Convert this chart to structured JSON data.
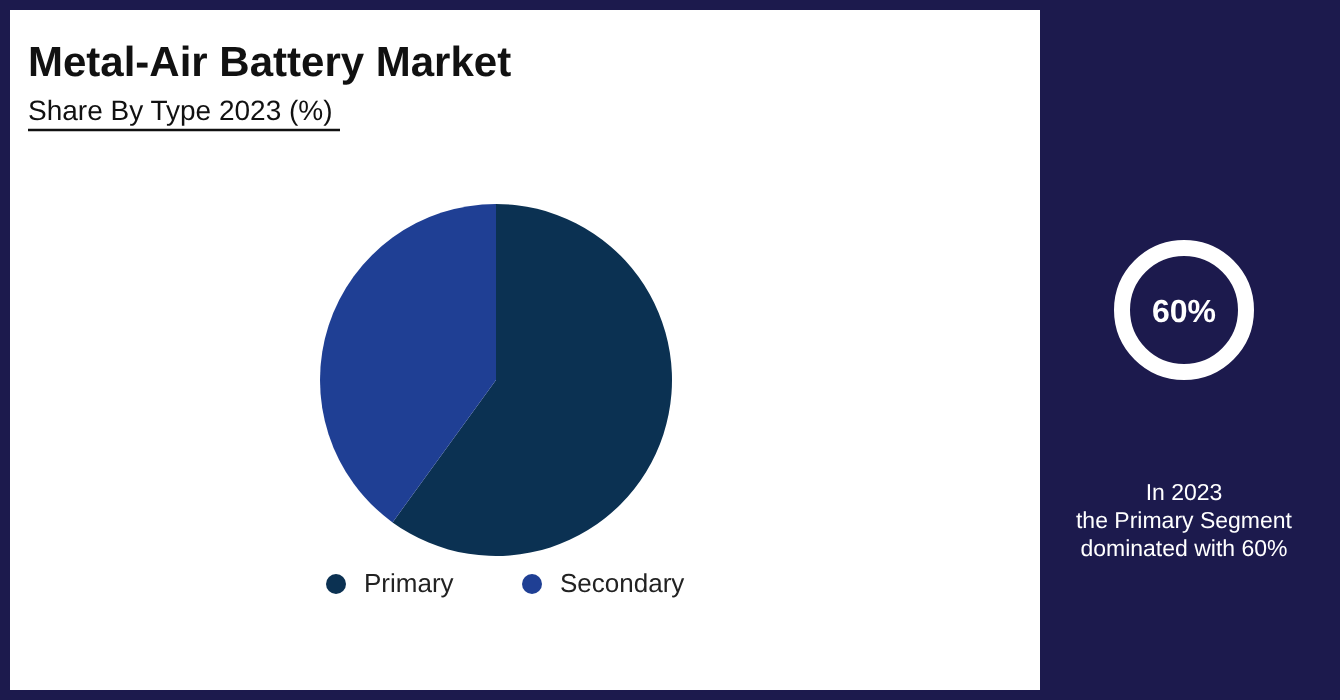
{
  "chart_data": {
    "type": "pie",
    "title": "Metal-Air Battery Market",
    "subtitle": "Share By Type 2023 (%)",
    "categories": [
      "Primary",
      "Secondary"
    ],
    "values": [
      60,
      40
    ],
    "colors": [
      "#0b3152",
      "#1f3f94"
    ],
    "legend": "bottom",
    "annotations": [
      "60%",
      "In 2023\nthe Primary Segment\ndominated with 60%"
    ]
  }
}
